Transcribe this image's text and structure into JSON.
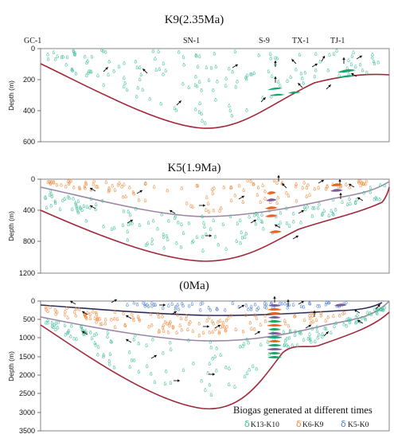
{
  "panels": [
    {
      "title": "K9(2.35Ma)",
      "y_axis_label": "Depth (m)",
      "y_ticks": [
        "0",
        "200",
        "400",
        "600"
      ],
      "wells": [
        "GC-1",
        "SN-1",
        "S-9",
        "TX-1",
        "TJ-1"
      ]
    },
    {
      "title": "K5(1.9Ma)",
      "y_axis_label": "Depth (m)",
      "y_ticks": [
        "0",
        "400",
        "800",
        "1200"
      ]
    },
    {
      "title": "(0Ma)",
      "y_axis_label": "Depth (m)",
      "y_ticks": [
        "0",
        "500",
        "1000",
        "1500",
        "2000",
        "2500",
        "3000",
        "3500"
      ]
    }
  ],
  "legend": {
    "title": "Biogas generated at different times",
    "items": [
      {
        "label": "K13-K10",
        "color": "#3dbf9a"
      },
      {
        "label": "K6-K9",
        "color": "#f0883a"
      },
      {
        "label": "K5-K0",
        "color": "#4a7fd4"
      }
    ]
  },
  "colors": {
    "basement": "#a0283a",
    "k10_boundary": "#9c86a6",
    "k5_boundary": "#2c2e5a",
    "green_gas": "#3dbf9a",
    "orange_gas": "#f0883a",
    "blue_gas": "#4a7fd4",
    "reservoir_green": "#1aa66a",
    "reservoir_orange": "#e8641a",
    "reservoir_purple": "#7a5a9a"
  }
}
